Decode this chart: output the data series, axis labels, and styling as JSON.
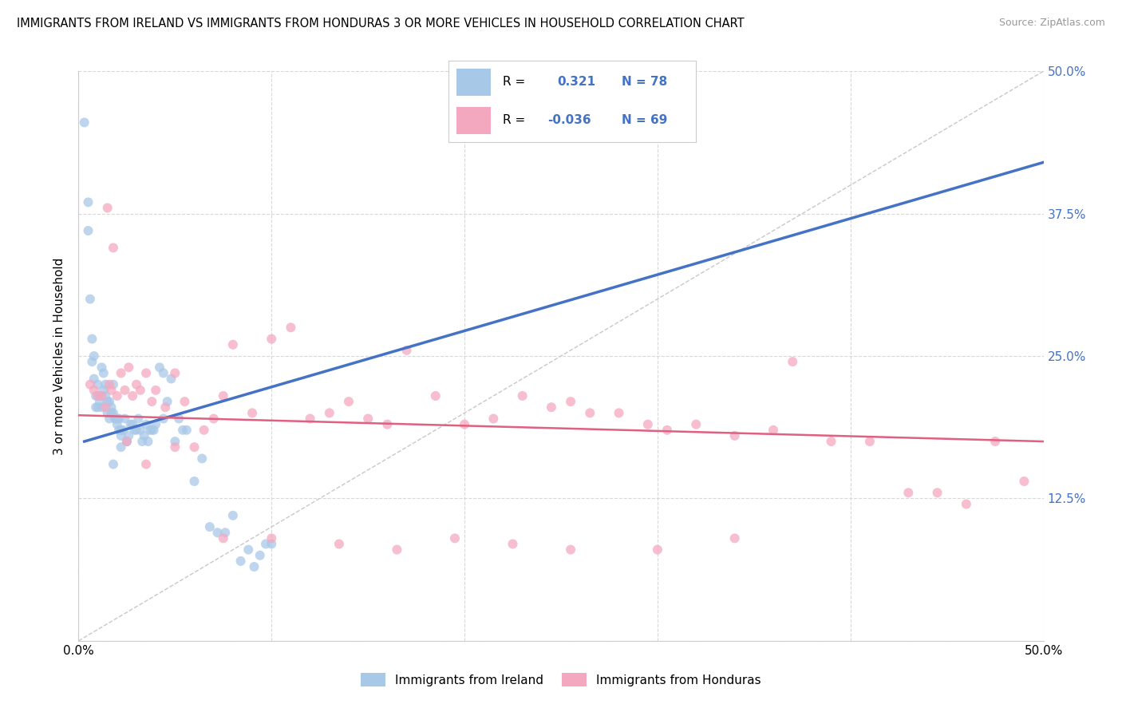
{
  "title": "IMMIGRANTS FROM IRELAND VS IMMIGRANTS FROM HONDURAS 3 OR MORE VEHICLES IN HOUSEHOLD CORRELATION CHART",
  "source": "Source: ZipAtlas.com",
  "ylabel": "3 or more Vehicles in Household",
  "xlim": [
    0.0,
    0.5
  ],
  "ylim": [
    0.0,
    0.5
  ],
  "ireland_color": "#a8c8e8",
  "honduras_color": "#f4a8c0",
  "ireland_line_color": "#4472c4",
  "honduras_line_color": "#e06080",
  "diagonal_color": "#c8c8c8",
  "R_ireland": 0.321,
  "N_ireland": 78,
  "R_honduras": -0.036,
  "N_honduras": 69,
  "background_color": "#ffffff",
  "grid_color": "#d8d8d8",
  "right_tick_color": "#4472c4",
  "ireland_x": [
    0.003,
    0.005,
    0.005,
    0.006,
    0.007,
    0.007,
    0.008,
    0.008,
    0.009,
    0.009,
    0.01,
    0.01,
    0.011,
    0.011,
    0.012,
    0.012,
    0.013,
    0.013,
    0.014,
    0.014,
    0.015,
    0.015,
    0.016,
    0.016,
    0.017,
    0.017,
    0.018,
    0.018,
    0.019,
    0.019,
    0.02,
    0.02,
    0.021,
    0.021,
    0.022,
    0.022,
    0.023,
    0.024,
    0.025,
    0.025,
    0.026,
    0.027,
    0.028,
    0.029,
    0.03,
    0.031,
    0.032,
    0.033,
    0.034,
    0.035,
    0.036,
    0.037,
    0.038,
    0.039,
    0.04,
    0.042,
    0.044,
    0.046,
    0.048,
    0.05,
    0.052,
    0.054,
    0.056,
    0.06,
    0.064,
    0.068,
    0.072,
    0.076,
    0.08,
    0.084,
    0.088,
    0.091,
    0.094,
    0.097,
    0.1,
    0.044,
    0.022,
    0.018
  ],
  "ireland_y": [
    0.455,
    0.385,
    0.36,
    0.3,
    0.265,
    0.245,
    0.25,
    0.23,
    0.215,
    0.205,
    0.205,
    0.225,
    0.21,
    0.215,
    0.205,
    0.24,
    0.22,
    0.235,
    0.225,
    0.215,
    0.2,
    0.21,
    0.21,
    0.195,
    0.205,
    0.2,
    0.2,
    0.225,
    0.195,
    0.195,
    0.19,
    0.195,
    0.185,
    0.195,
    0.185,
    0.18,
    0.185,
    0.195,
    0.175,
    0.175,
    0.18,
    0.19,
    0.19,
    0.185,
    0.185,
    0.195,
    0.185,
    0.175,
    0.18,
    0.19,
    0.175,
    0.185,
    0.185,
    0.185,
    0.19,
    0.24,
    0.235,
    0.21,
    0.23,
    0.175,
    0.195,
    0.185,
    0.185,
    0.14,
    0.16,
    0.1,
    0.095,
    0.095,
    0.11,
    0.07,
    0.08,
    0.065,
    0.075,
    0.085,
    0.085,
    0.195,
    0.17,
    0.155
  ],
  "honduras_x": [
    0.006,
    0.008,
    0.01,
    0.012,
    0.014,
    0.015,
    0.016,
    0.017,
    0.018,
    0.02,
    0.022,
    0.024,
    0.026,
    0.028,
    0.03,
    0.032,
    0.035,
    0.038,
    0.04,
    0.045,
    0.05,
    0.055,
    0.06,
    0.065,
    0.07,
    0.075,
    0.08,
    0.09,
    0.1,
    0.11,
    0.12,
    0.13,
    0.14,
    0.15,
    0.16,
    0.17,
    0.185,
    0.2,
    0.215,
    0.23,
    0.245,
    0.255,
    0.265,
    0.28,
    0.295,
    0.305,
    0.32,
    0.34,
    0.36,
    0.37,
    0.39,
    0.41,
    0.43,
    0.445,
    0.46,
    0.475,
    0.49,
    0.025,
    0.035,
    0.05,
    0.075,
    0.1,
    0.135,
    0.165,
    0.195,
    0.225,
    0.255,
    0.3,
    0.34
  ],
  "honduras_y": [
    0.225,
    0.22,
    0.215,
    0.215,
    0.205,
    0.38,
    0.225,
    0.22,
    0.345,
    0.215,
    0.235,
    0.22,
    0.24,
    0.215,
    0.225,
    0.22,
    0.235,
    0.21,
    0.22,
    0.205,
    0.235,
    0.21,
    0.17,
    0.185,
    0.195,
    0.215,
    0.26,
    0.2,
    0.265,
    0.275,
    0.195,
    0.2,
    0.21,
    0.195,
    0.19,
    0.255,
    0.215,
    0.19,
    0.195,
    0.215,
    0.205,
    0.21,
    0.2,
    0.2,
    0.19,
    0.185,
    0.19,
    0.18,
    0.185,
    0.245,
    0.175,
    0.175,
    0.13,
    0.13,
    0.12,
    0.175,
    0.14,
    0.175,
    0.155,
    0.17,
    0.09,
    0.09,
    0.085,
    0.08,
    0.09,
    0.085,
    0.08,
    0.08,
    0.09
  ],
  "ireland_trend_x": [
    0.003,
    0.5
  ],
  "ireland_trend_y": [
    0.175,
    0.42
  ],
  "honduras_trend_x": [
    0.0,
    0.5
  ],
  "honduras_trend_y": [
    0.198,
    0.175
  ]
}
